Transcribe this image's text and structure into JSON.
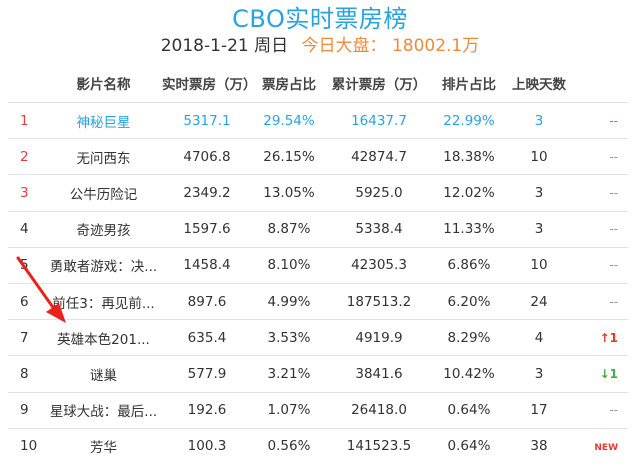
{
  "header": {
    "title": "CBO实时票房榜",
    "date": "2018-1-21 周日",
    "grand_label": "今日大盘：",
    "grand_value": "18002.1万"
  },
  "columns": [
    "影片名称",
    "实时票房（万）",
    "票房占比",
    "累计票房（万）",
    "排片占比",
    "上映天数"
  ],
  "rows": [
    {
      "rank": "1",
      "name": "神秘巨星",
      "box": "5317.1",
      "box_share": "29.54%",
      "total": "16437.7",
      "screen_share": "22.99%",
      "days": "3",
      "trend": "--"
    },
    {
      "rank": "2",
      "name": "无问西东",
      "box": "4706.8",
      "box_share": "26.15%",
      "total": "42874.7",
      "screen_share": "18.38%",
      "days": "10",
      "trend": "--"
    },
    {
      "rank": "3",
      "name": "公牛历险记",
      "box": "2349.2",
      "box_share": "13.05%",
      "total": "5925.0",
      "screen_share": "12.02%",
      "days": "3",
      "trend": "--"
    },
    {
      "rank": "4",
      "name": "奇迹男孩",
      "box": "1597.6",
      "box_share": "8.87%",
      "total": "5338.4",
      "screen_share": "11.33%",
      "days": "3",
      "trend": "--"
    },
    {
      "rank": "5",
      "name": "勇敢者游戏：决...",
      "box": "1458.4",
      "box_share": "8.10%",
      "total": "42305.3",
      "screen_share": "6.86%",
      "days": "10",
      "trend": "--"
    },
    {
      "rank": "6",
      "name": "前任3：再见前...",
      "box": "897.6",
      "box_share": "4.99%",
      "total": "187513.2",
      "screen_share": "6.20%",
      "days": "24",
      "trend": "--"
    },
    {
      "rank": "7",
      "name": "英雄本色201...",
      "box": "635.4",
      "box_share": "3.53%",
      "total": "4919.9",
      "screen_share": "8.29%",
      "days": "4",
      "trend": "↑1"
    },
    {
      "rank": "8",
      "name": "谜巢",
      "box": "577.9",
      "box_share": "3.21%",
      "total": "3841.6",
      "screen_share": "10.42%",
      "days": "3",
      "trend": "↓1"
    },
    {
      "rank": "9",
      "name": "星球大战：最后...",
      "box": "192.6",
      "box_share": "1.07%",
      "total": "26418.0",
      "screen_share": "0.64%",
      "days": "17",
      "trend": "--"
    },
    {
      "rank": "10",
      "name": "芳华",
      "box": "100.3",
      "box_share": "0.56%",
      "total": "141523.5",
      "screen_share": "0.64%",
      "days": "38",
      "trend": "NEW"
    }
  ],
  "colors": {
    "accent": "#29a3e0",
    "rank_red": "#e0443a",
    "grand_orange": "#f08a3c",
    "trend_up": "#e23b2e",
    "trend_down": "#3bb04a",
    "annotation_arrow": "#e8231c"
  },
  "annotation": {
    "icon": "red-arrow-icon"
  }
}
